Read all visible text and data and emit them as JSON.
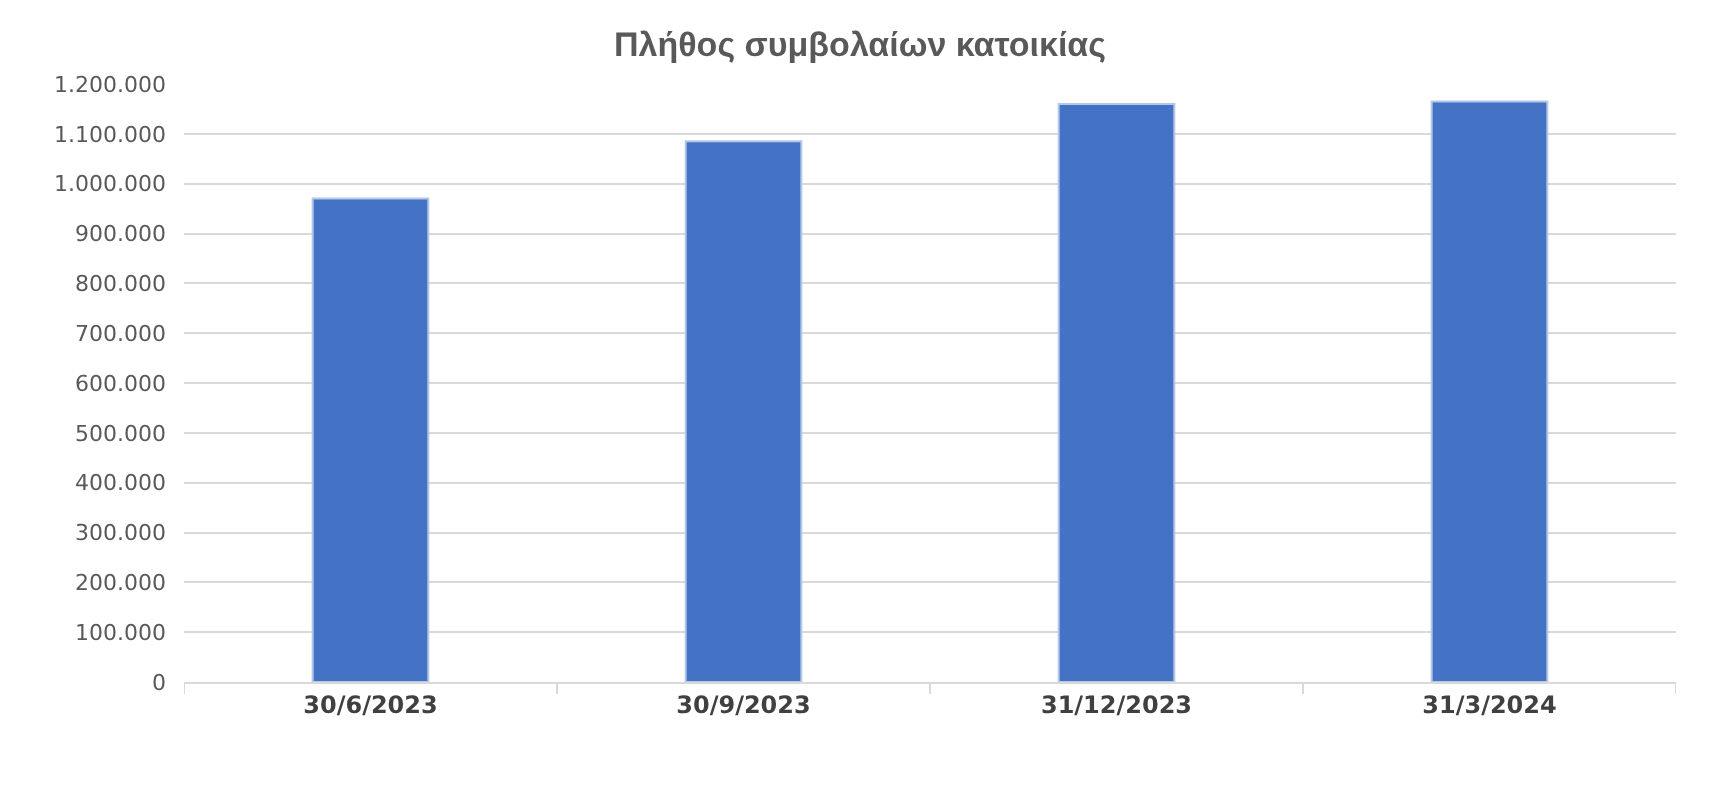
{
  "chart_data": {
    "type": "bar",
    "title": "Πλήθος συμβολαίων κατοικίας",
    "categories": [
      "30/6/2023",
      "30/9/2023",
      "31/12/2023",
      "31/3/2024"
    ],
    "values": [
      970000,
      1085000,
      1160000,
      1165000
    ],
    "color": "#4472c4",
    "ylim": [
      0,
      1200000
    ],
    "yticks": [
      0,
      {
        "value": 100000,
        "label": "100.000"
      },
      {
        "value": 200000,
        "label": "200.000"
      },
      {
        "value": 300000,
        "label": "300.000"
      },
      {
        "value": 400000,
        "label": "400.000"
      },
      {
        "value": 500000,
        "label": "500.000"
      },
      {
        "value": 600000,
        "label": "600.000"
      },
      {
        "value": 700000,
        "label": "700.000"
      },
      {
        "value": 800000,
        "label": "800.000"
      },
      {
        "value": 900000,
        "label": "900.000"
      },
      {
        "value": 1000000,
        "label": "1.000.000"
      },
      {
        "value": 1100000,
        "label": "1.100.000"
      },
      {
        "value": 1200000,
        "label": "1.200.000"
      }
    ],
    "grid": "y"
  }
}
